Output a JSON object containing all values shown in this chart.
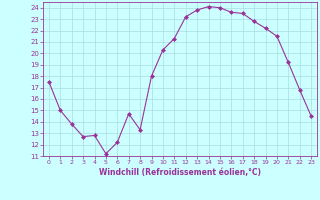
{
  "x": [
    0,
    1,
    2,
    3,
    4,
    5,
    6,
    7,
    8,
    9,
    10,
    11,
    12,
    13,
    14,
    15,
    16,
    17,
    18,
    19,
    20,
    21,
    22,
    23
  ],
  "y": [
    17.5,
    15.0,
    13.8,
    12.7,
    12.8,
    11.2,
    12.2,
    14.7,
    13.3,
    18.0,
    20.3,
    21.3,
    23.2,
    23.8,
    24.1,
    24.0,
    23.6,
    23.5,
    22.8,
    22.2,
    21.5,
    19.2,
    16.8,
    14.5
  ],
  "line_color": "#993399",
  "marker": "D",
  "marker_size": 2,
  "bg_color": "#ccffff",
  "grid_color": "#aadddd",
  "xlabel": "Windchill (Refroidissement éolien,°C)",
  "xlabel_color": "#993399",
  "tick_color": "#993399",
  "xlim": [
    -0.5,
    23.5
  ],
  "ylim": [
    11,
    24.5
  ],
  "yticks": [
    11,
    12,
    13,
    14,
    15,
    16,
    17,
    18,
    19,
    20,
    21,
    22,
    23,
    24
  ],
  "xticks": [
    0,
    1,
    2,
    3,
    4,
    5,
    6,
    7,
    8,
    9,
    10,
    11,
    12,
    13,
    14,
    15,
    16,
    17,
    18,
    19,
    20,
    21,
    22,
    23
  ]
}
